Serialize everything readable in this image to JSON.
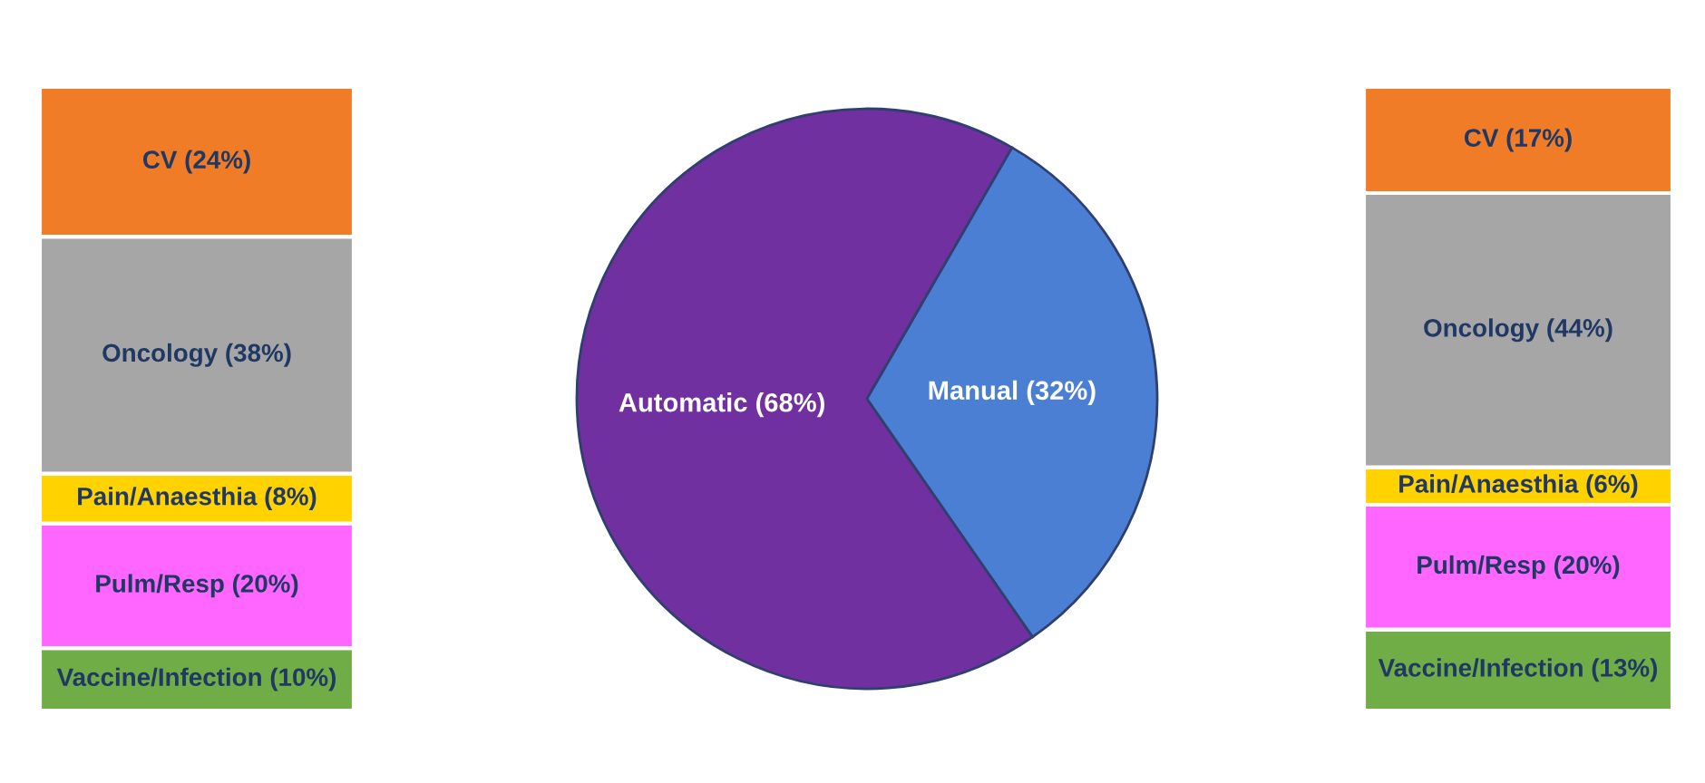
{
  "chart_data": [
    {
      "type": "bar",
      "stacked": true,
      "categories": [
        null
      ],
      "series": [
        {
          "color": "#70ad47",
          "values": [
            10
          ],
          "value_labels": [
            "Vaccine/Infection (10%)"
          ]
        },
        {
          "color": "#ff66ff",
          "values": [
            20
          ],
          "value_labels": [
            "Pulm/Resp (20%)"
          ]
        },
        {
          "color": "#ffd200",
          "values": [
            8
          ],
          "value_labels": [
            "Pain/Anaesthia (8%)"
          ]
        },
        {
          "color": "#a6a6a6",
          "values": [
            38
          ],
          "value_labels": [
            "Oncology (38%)"
          ]
        },
        {
          "color": "#f07c28",
          "values": [
            24
          ],
          "value_labels": [
            "CV (24%)"
          ]
        }
      ]
    },
    {
      "type": "pie",
      "categories": [
        "Automatic (68%)",
        "Manual (32%)"
      ],
      "values": [
        68,
        32
      ],
      "colors": [
        "#7030a0",
        "#4a7fd4"
      ]
    },
    {
      "type": "bar",
      "stacked": true,
      "categories": [
        null
      ],
      "series": [
        {
          "color": "#70ad47",
          "values": [
            13
          ],
          "value_labels": [
            "Vaccine/Infection (13%)"
          ]
        },
        {
          "color": "#ff66ff",
          "values": [
            20
          ],
          "value_labels": [
            "Pulm/Resp (20%)"
          ]
        },
        {
          "color": "#ffd200",
          "values": [
            6
          ],
          "value_labels": [
            "Pain/Anaesthia (6%)"
          ]
        },
        {
          "color": "#a6a6a6",
          "values": [
            44
          ],
          "value_labels": [
            "Oncology (44%)"
          ]
        },
        {
          "color": "#f07c28",
          "values": [
            17
          ],
          "value_labels": [
            "CV (17%)"
          ]
        }
      ]
    }
  ]
}
